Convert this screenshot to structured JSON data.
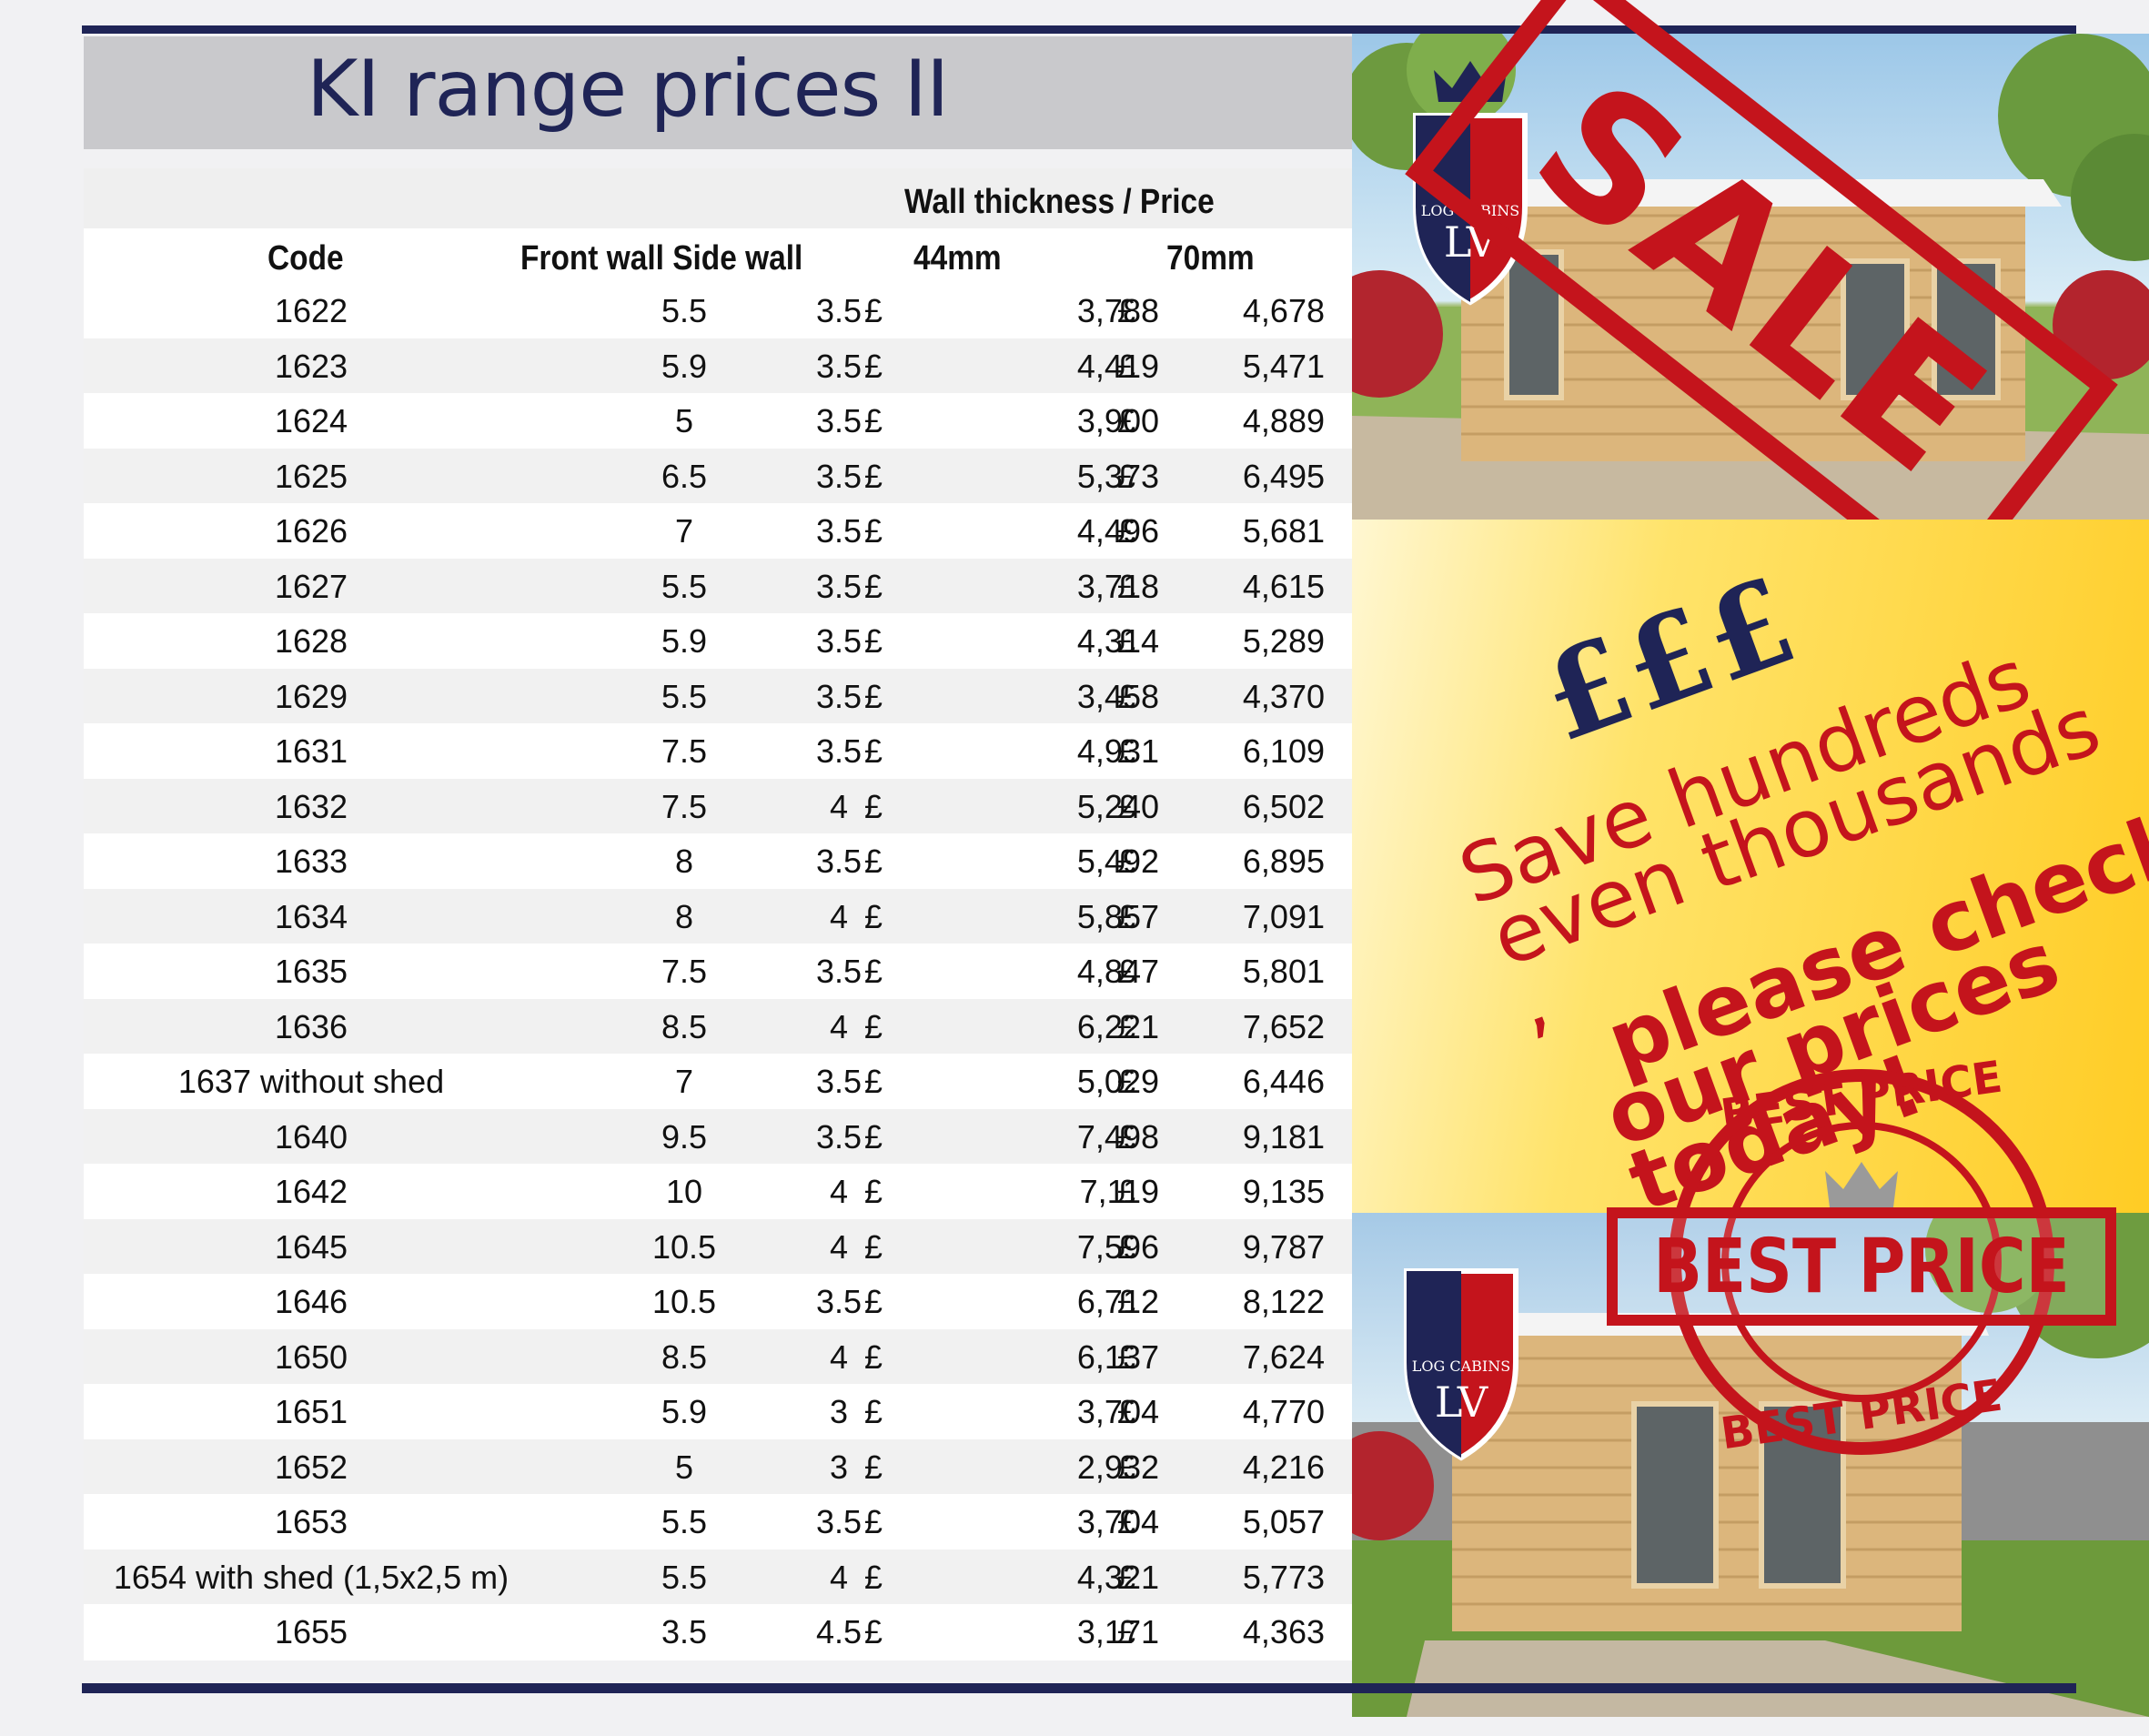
{
  "title": "KI range prices II",
  "table": {
    "group_header": "Wall thickness / Price",
    "headers": {
      "code": "Code",
      "front_side": "Front wall Side wall",
      "t44": "44mm",
      "t70": "70mm"
    },
    "currency": "£",
    "rows": [
      {
        "code": "1622",
        "front": "5.5",
        "side": "3.5",
        "p44": "3,788",
        "p70": "4,678"
      },
      {
        "code": "1623",
        "front": "5.9",
        "side": "3.5",
        "p44": "4,419",
        "p70": "5,471"
      },
      {
        "code": "1624",
        "front": "5",
        "side": "3.5",
        "p44": "3,900",
        "p70": "4,889"
      },
      {
        "code": "1625",
        "front": "6.5",
        "side": "3.5",
        "p44": "5,373",
        "p70": "6,495"
      },
      {
        "code": "1626",
        "front": "7",
        "side": "3.5",
        "p44": "4,496",
        "p70": "5,681"
      },
      {
        "code": "1627",
        "front": "5.5",
        "side": "3.5",
        "p44": "3,718",
        "p70": "4,615"
      },
      {
        "code": "1628",
        "front": "5.9",
        "side": "3.5",
        "p44": "4,314",
        "p70": "5,289"
      },
      {
        "code": "1629",
        "front": "5.5",
        "side": "3.5",
        "p44": "3,458",
        "p70": "4,370"
      },
      {
        "code": "1631",
        "front": "7.5",
        "side": "3.5",
        "p44": "4,931",
        "p70": "6,109"
      },
      {
        "code": "1632",
        "front": "7.5",
        "side": "4",
        "p44": "5,240",
        "p70": "6,502"
      },
      {
        "code": "1633",
        "front": "8",
        "side": "3.5",
        "p44": "5,492",
        "p70": "6,895"
      },
      {
        "code": "1634",
        "front": "8",
        "side": "4",
        "p44": "5,857",
        "p70": "7,091"
      },
      {
        "code": "1635",
        "front": "7.5",
        "side": "3.5",
        "p44": "4,847",
        "p70": "5,801"
      },
      {
        "code": "1636",
        "front": "8.5",
        "side": "4",
        "p44": "6,221",
        "p70": "7,652"
      },
      {
        "code": "1637 without shed",
        "front": "7",
        "side": "3.5",
        "p44": "5,029",
        "p70": "6,446"
      },
      {
        "code": "1640",
        "front": "9.5",
        "side": "3.5",
        "p44": "7,498",
        "p70": "9,181"
      },
      {
        "code": "1642",
        "front": "10",
        "side": "4",
        "p44": "7,119",
        "p70": "9,135"
      },
      {
        "code": "1645",
        "front": "10.5",
        "side": "4",
        "p44": "7,596",
        "p70": "9,787"
      },
      {
        "code": "1646",
        "front": "10.5",
        "side": "3.5",
        "p44": "6,712",
        "p70": "8,122"
      },
      {
        "code": "1650",
        "front": "8.5",
        "side": "4",
        "p44": "6,137",
        "p70": "7,624"
      },
      {
        "code": "1651",
        "front": "5.9",
        "side": "3",
        "p44": "3,704",
        "p70": "4,770"
      },
      {
        "code": "1652",
        "front": "5",
        "side": "3",
        "p44": "2,932",
        "p70": "4,216"
      },
      {
        "code": "1653",
        "front": "5.5",
        "side": "3.5",
        "p44": "3,704",
        "p70": "5,057"
      },
      {
        "code": "1654 with shed (1,5x2,5 m)",
        "front": "5.5",
        "side": "4",
        "p44": "4,321",
        "p70": "5,773"
      },
      {
        "code": "1655",
        "front": "3.5",
        "side": "4.5",
        "p44": "3,171",
        "p70": "4,363"
      }
    ]
  },
  "promo": {
    "sale_stamp": "SALE",
    "pounds": "£££",
    "lines": [
      "Save hundreds",
      "even thousands ,",
      "please check",
      "our prices today!"
    ],
    "best_price_top": "BEST PRICE",
    "best_price_center": "BEST PRICE",
    "best_price_bottom": "BEST PRICE",
    "logo_text": "LOG CABINS",
    "logo_initials": "LV"
  },
  "colors": {
    "navy": "#1f2456",
    "stamp_red": "#c4141c",
    "promo_yellow": "#ffcc24"
  }
}
